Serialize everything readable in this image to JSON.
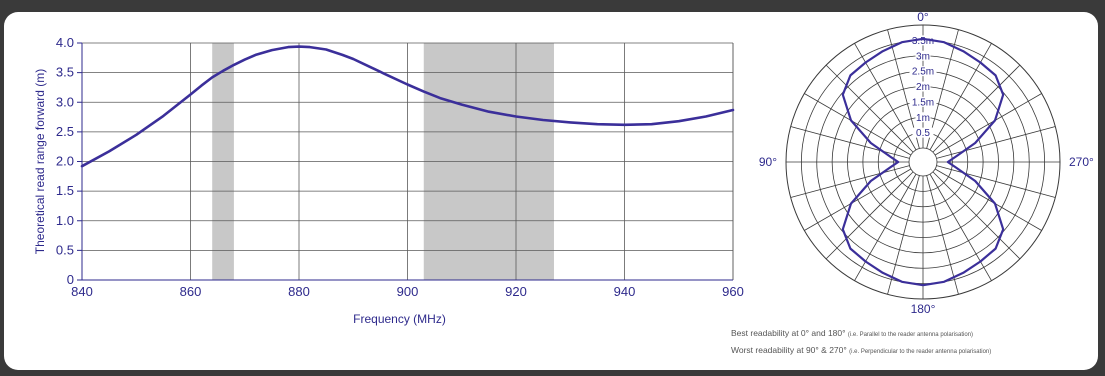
{
  "chart_data": [
    {
      "type": "line",
      "xlabel": "Frequency (MHz)",
      "ylabel": "Theoretical read range forward (m)",
      "xlim": [
        840,
        960
      ],
      "ylim": [
        0,
        4.0
      ],
      "x_ticks": [
        "840",
        "860",
        "880",
        "900",
        "920",
        "940",
        "960"
      ],
      "y_ticks": [
        "0",
        "0.5",
        "1.0",
        "1.5",
        "2.0",
        "2.5",
        "3.0",
        "3.5",
        "4.0"
      ],
      "grid": true,
      "shaded_bands": [
        [
          864,
          868
        ],
        [
          903,
          927
        ]
      ],
      "line_color": "#3b2f9a",
      "band_color": "#c8c8c8",
      "series": [
        {
          "x": [
            840,
            845,
            850,
            855,
            860,
            862,
            864,
            866,
            868,
            870,
            872,
            875,
            878,
            880,
            882,
            885,
            888,
            890,
            893,
            896,
            900,
            903,
            906,
            910,
            915,
            920,
            925,
            930,
            935,
            940,
            945,
            950,
            955,
            960
          ],
          "y": [
            1.92,
            2.17,
            2.45,
            2.77,
            3.13,
            3.28,
            3.42,
            3.53,
            3.63,
            3.72,
            3.8,
            3.88,
            3.93,
            3.94,
            3.93,
            3.89,
            3.8,
            3.73,
            3.6,
            3.47,
            3.3,
            3.18,
            3.07,
            2.96,
            2.84,
            2.76,
            2.7,
            2.66,
            2.63,
            2.62,
            2.63,
            2.68,
            2.76,
            2.87
          ]
        }
      ]
    },
    {
      "type": "polar",
      "angle_labels": [
        "0°",
        "90°",
        "180°",
        "270°"
      ],
      "radial_labels": [
        "0.5",
        "1m",
        "1.5m",
        "2m",
        "2.5m",
        "3m",
        "3.5m"
      ],
      "radial_values": [
        0.5,
        1.0,
        1.5,
        2.0,
        2.5,
        3.0,
        3.5
      ],
      "rmax": 4.0,
      "angles": [
        0,
        10,
        20,
        30,
        40,
        50,
        60,
        70,
        80,
        90,
        100,
        110,
        120,
        130,
        140,
        150,
        160,
        170,
        180,
        190,
        200,
        210,
        220,
        230,
        240,
        250,
        260,
        270,
        280,
        290,
        300,
        310,
        320,
        330,
        340,
        350
      ],
      "radii": [
        3.55,
        3.5,
        3.38,
        3.28,
        3.22,
        2.95,
        2.25,
        1.35,
        0.65,
        0.35,
        0.65,
        1.35,
        2.25,
        2.95,
        3.22,
        3.28,
        3.38,
        3.5,
        3.55,
        3.5,
        3.38,
        3.28,
        3.22,
        2.95,
        2.25,
        1.35,
        0.65,
        0.35,
        0.65,
        1.35,
        2.25,
        2.95,
        3.22,
        3.28,
        3.38,
        3.5
      ],
      "line_color": "#3b2f9a"
    }
  ],
  "captions": {
    "best_main": "Best readability at 0° and 180°",
    "best_note": "(i.e. Parallel to the reader antenna polarisation)",
    "worst_main": "Worst readability at 90° & 270°",
    "worst_note": "(i.e. Perpendicular to the reader antenna polarisation)"
  }
}
